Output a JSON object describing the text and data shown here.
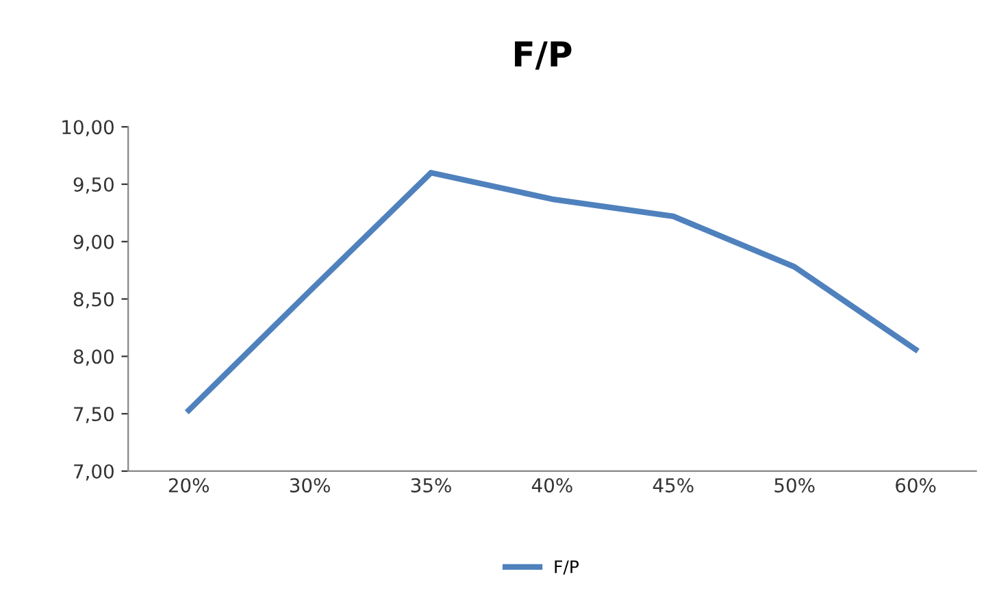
{
  "chart_data": {
    "type": "line",
    "title": "F/P",
    "categories": [
      "20%",
      "30%",
      "35%",
      "40%",
      "45%",
      "50%",
      "60%"
    ],
    "series": [
      {
        "name": "F/P",
        "color": "#4f81bd",
        "values": [
          7.53,
          8.57,
          9.6,
          9.37,
          9.22,
          8.78,
          8.06
        ]
      }
    ],
    "ylim": [
      7,
      10
    ],
    "yticks": [
      {
        "value": 7,
        "label": "7,00"
      },
      {
        "value": 7.5,
        "label": "7,50"
      },
      {
        "value": 8,
        "label": "8,00"
      },
      {
        "value": 8.5,
        "label": "8,50"
      },
      {
        "value": 9,
        "label": "9,00"
      },
      {
        "value": 9.5,
        "label": "9,50"
      },
      {
        "value": 10,
        "label": "10,00"
      }
    ],
    "grid": false,
    "legend": "bottom",
    "marker": "none",
    "line_style": "solid"
  }
}
